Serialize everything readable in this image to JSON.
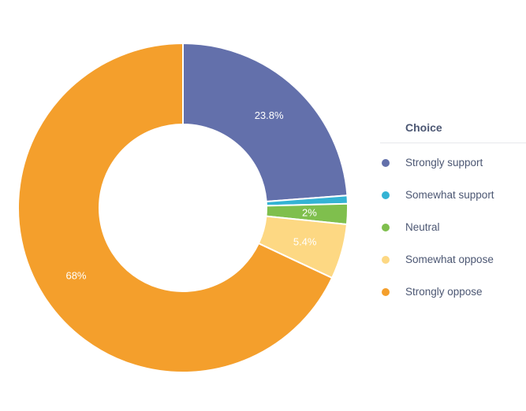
{
  "chart_data": {
    "type": "pie",
    "style": "donut",
    "legend_title": "Choice",
    "legend_position": "right",
    "slices": [
      {
        "name": "Strongly support",
        "value": 23.8,
        "label": "23.8%",
        "color": "#6370ab"
      },
      {
        "name": "Somewhat support",
        "value": 0.8,
        "label": "",
        "color": "#34b3d4"
      },
      {
        "name": "Neutral",
        "value": 2.0,
        "label": "2%",
        "color": "#7fbf4d"
      },
      {
        "name": "Somewhat oppose",
        "value": 5.4,
        "label": "5.4%",
        "color": "#fdd883"
      },
      {
        "name": "Strongly oppose",
        "value": 68.0,
        "label": "68%",
        "color": "#f49f2c"
      }
    ]
  }
}
